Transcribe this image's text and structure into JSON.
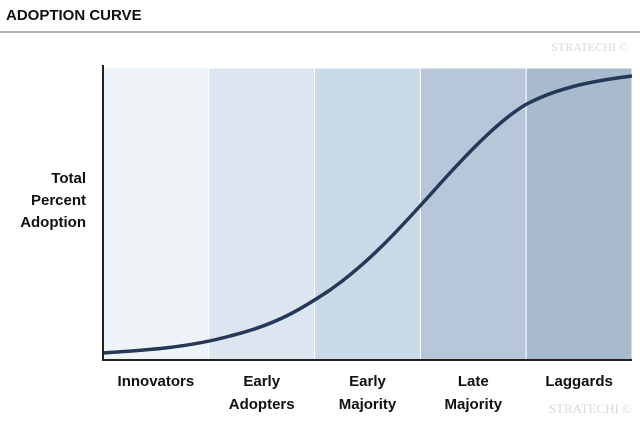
{
  "header": {
    "title": "ADOPTION CURVE"
  },
  "y_label": [
    "Total",
    "Percent",
    "Adoption"
  ],
  "stages": [
    {
      "label": [
        "Innovators"
      ]
    },
    {
      "label": [
        "Early",
        "Adopters"
      ]
    },
    {
      "label": [
        "Early",
        "Majority"
      ]
    },
    {
      "label": [
        "Late",
        "Majority"
      ]
    },
    {
      "label": [
        "Laggards"
      ]
    }
  ],
  "watermarks": [
    "STRATECHI ©",
    "STRATECHI ©"
  ]
}
